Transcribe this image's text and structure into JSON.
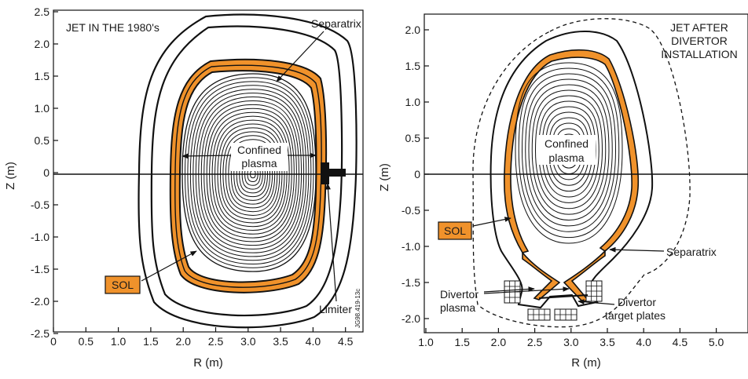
{
  "colors": {
    "sol": "#f0922b",
    "ink": "#111111",
    "background": "#ffffff"
  },
  "left_panel": {
    "title": "JET IN THE 1980's",
    "xlabel": "R (m)",
    "ylabel": "Z (m)",
    "xticks": [
      "0",
      "0.5",
      "1.0",
      "1.5",
      "2.0",
      "2.5",
      "3.0",
      "3.5",
      "4.0",
      "4.5"
    ],
    "yticks": [
      "2.5",
      "2.0",
      "1.5",
      "1.0",
      "0.5",
      "0",
      "-0.5",
      "-1.0",
      "-1.5",
      "-2.0",
      "-2.5"
    ],
    "labels": {
      "separatrix": "Separatrix",
      "confined": "Confined",
      "plasma": "plasma",
      "sol": "SOL",
      "limiter": "Limiter",
      "code": "JG98.419-13c"
    }
  },
  "right_panel": {
    "title_lines": [
      "JET AFTER",
      "DIVERTOR",
      "INSTALLATION"
    ],
    "xlabel": "R (m)",
    "ylabel": "Z (m)",
    "xticks": [
      "1.0",
      "1.5",
      "2.0",
      "2.5",
      "3.0",
      "3.5",
      "4.0",
      "4.5",
      "5.0"
    ],
    "yticks": [
      "2.0",
      "1.5",
      "1.0",
      "0.5",
      "0",
      "-0.5",
      "-1.0",
      "-1.5",
      "-2.0"
    ],
    "labels": {
      "confined": "Confined",
      "plasma": "plasma",
      "sol": "SOL",
      "separatrix": "Separatrix",
      "divertor_plasma_1": "Divertor",
      "divertor_plasma_2": "plasma",
      "divertor_target_1": "Divertor",
      "divertor_target_2": "target plates"
    }
  }
}
